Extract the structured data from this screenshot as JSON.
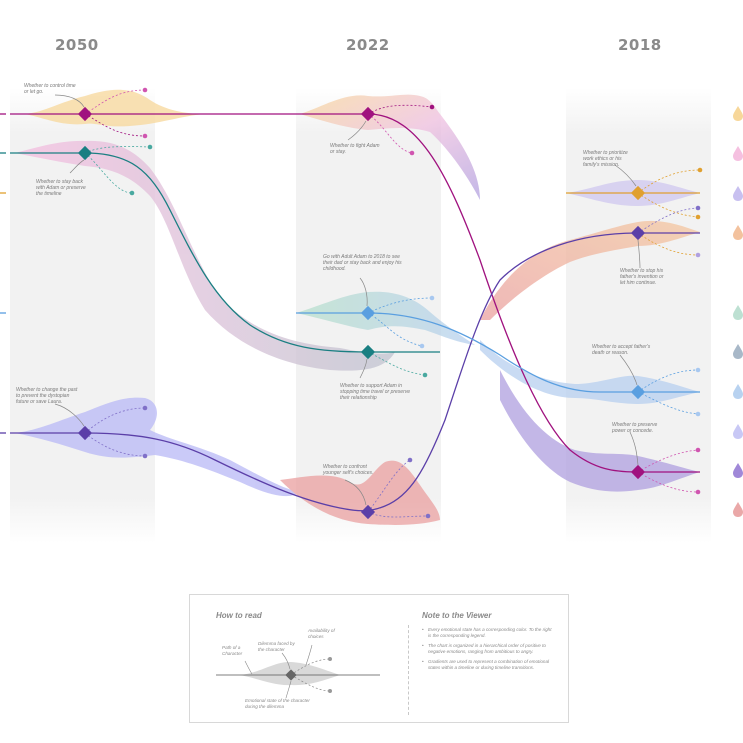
{
  "years": [
    "2050",
    "2022",
    "2018"
  ],
  "notes": {
    "n2050_1": "Whether to control time or let go.",
    "n2050_2": "Whether to stay back with Adam or preserve the timeline",
    "n2050_3": "Whether to change the past to prevent the dystopian future or save Laura.",
    "n2022_1": "Whether to fight Adam or stay.",
    "n2022_2": "Go with Adult Adam to 2018 to see their dad or stay back and enjoy his childhood.",
    "n2022_3": "Whether to support Adam in stopping time travel or preserve their relationship",
    "n2022_4": "Whether to confront younger self's choices.",
    "n2018_1": "Whether to prioritize work ethics or his family's mission.",
    "n2018_2": "Whether to stop his father's invention or let him continue.",
    "n2018_3": "Whether to accept father's death or reason.",
    "n2018_4": "Whether to preserve power or concede."
  },
  "legend": {
    "how_to_read_title": "How to read",
    "note_title": "Note to the Viewer",
    "path_label": "Path of a Character",
    "dilemma_label": "Dilemma faced by the character",
    "choices_label": "Availability of choices",
    "emotion_label": "Emotional state of the character during the dilemma",
    "bullets": [
      "Every emotional state has a corresponding color. To the right is the corresponding legend.",
      "The chart is organized in a hierarchical order of positive to negative emotions, ranging from ambitious to angry.",
      "Gradients are used to represent a combination of emotional states within a timeline or during timeline transitions."
    ]
  },
  "colors": {
    "magenta": "#a0127f",
    "teal": "#1a7f82",
    "purple": "#5b3fa8",
    "blue": "#5a9fe0",
    "orange": "#e0a030",
    "drop_colors": [
      "#f7d79a",
      "#f5c0e0",
      "#c8c0f0",
      "#f3c29e",
      "#bde0d2",
      "#a8b8c8",
      "#b8d2f0",
      "#c8c8f5",
      "#a088d8",
      "#eaa8a8"
    ]
  }
}
